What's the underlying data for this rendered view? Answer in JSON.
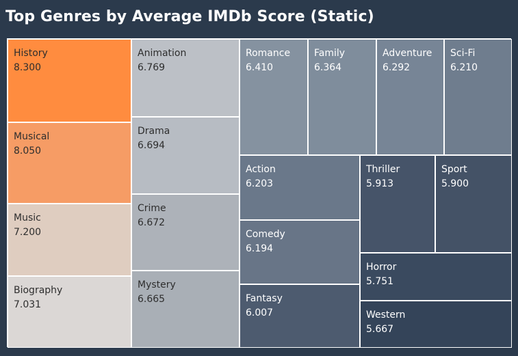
{
  "title": "Top Genres by Average IMDb Score (Static)",
  "colors": {
    "background": "#2b3a4c",
    "border": "#ffffff",
    "dark_text": "#2e2e2e",
    "light_text": "#ffffff"
  },
  "chart_data": {
    "type": "treemap",
    "title": "Top Genres by Average IMDb Score (Static)",
    "categories": [
      "History",
      "Musical",
      "Music",
      "Biography",
      "Animation",
      "Drama",
      "Crime",
      "Mystery",
      "Romance",
      "Family",
      "Adventure",
      "Sci-Fi",
      "Action",
      "Comedy",
      "Fantasy",
      "Thriller",
      "Sport",
      "Horror",
      "Western"
    ],
    "values": [
      8.3,
      8.05,
      7.2,
      7.031,
      6.769,
      6.694,
      6.672,
      6.665,
      6.41,
      6.364,
      6.292,
      6.21,
      6.203,
      6.194,
      6.007,
      5.913,
      5.9,
      5.751,
      5.667
    ],
    "value_labels": [
      "8.300",
      "8.050",
      "7.200",
      "7.031",
      "6.769",
      "6.694",
      "6.672",
      "6.665",
      "6.410",
      "6.364",
      "6.292",
      "6.210",
      "6.203",
      "6.194",
      "6.007",
      "5.913",
      "5.900",
      "5.751",
      "5.667"
    ],
    "cell_colors": [
      "#ff8c3f",
      "#f69c65",
      "#dfcdc0",
      "#dbd7d5",
      "#bcc0c6",
      "#b7bcc3",
      "#adb2b9",
      "#a9afb6",
      "#8592a0",
      "#7f8d9c",
      "#778596",
      "#6f7d8e",
      "#6a788a",
      "#687587",
      "#4d5b6f",
      "#465469",
      "#445266",
      "#3a4a5f",
      "#344459"
    ]
  }
}
